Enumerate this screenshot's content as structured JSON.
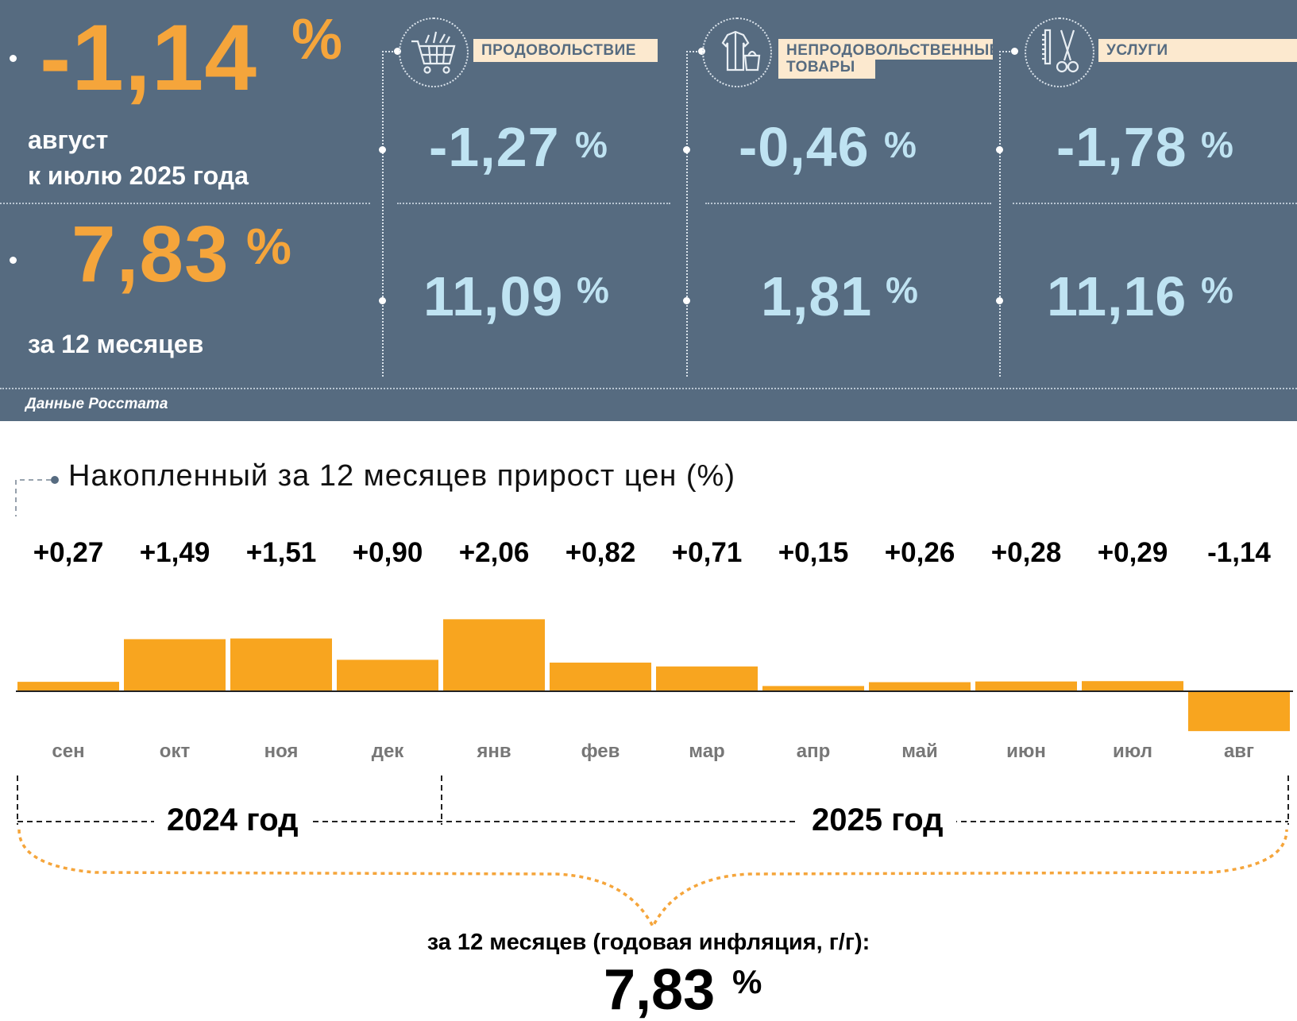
{
  "header": {
    "monthly_value": "-1,14",
    "monthly_pct": "%",
    "monthly_caption_1": "август",
    "monthly_caption_2": "к июлю 2025 года",
    "annual_value": "7,83",
    "annual_pct": "%",
    "annual_caption": "за 12 месяцев",
    "source": "Данные Росстата"
  },
  "categories": [
    {
      "icon": "shopping-cart-icon",
      "label_1": "ПРОДОВОЛЬСТВИЕ",
      "label_2": "",
      "monthly": "-1,27",
      "annual": "11,09",
      "pct": "%"
    },
    {
      "icon": "clothes-bag-icon",
      "label_1": "НЕПРОДОВОЛЬСТВЕННЫЕ",
      "label_2": "ТОВАРЫ",
      "monthly": "-0,46",
      "annual": "1,81",
      "pct": "%"
    },
    {
      "icon": "scissors-comb-icon",
      "label_1": "УСЛУГИ",
      "label_2": "",
      "monthly": "-1,78",
      "annual": "11,16",
      "pct": "%"
    }
  ],
  "colors": {
    "panel": "#566b80",
    "accent_orange": "#f5a53b",
    "value_blue": "#bfe3f2",
    "bar": "#f8a51f",
    "label_bg": "#fce9cf"
  },
  "chart_data": {
    "type": "bar",
    "title": "Накопленный за 12 месяцев прирост цен (%)",
    "categories": [
      "сен",
      "окт",
      "ноя",
      "дек",
      "янв",
      "фев",
      "мар",
      "апр",
      "май",
      "июн",
      "июл",
      "авг"
    ],
    "values": [
      0.27,
      1.49,
      1.51,
      0.9,
      2.06,
      0.82,
      0.71,
      0.15,
      0.26,
      0.28,
      0.29,
      -1.14
    ],
    "value_labels": [
      "+0,27",
      "+1,49",
      "+1,51",
      "+0,90",
      "+2,06",
      "+0,82",
      "+0,71",
      "+0,15",
      "+0,26",
      "+0,28",
      "+0,29",
      "-1,14"
    ],
    "groups": [
      {
        "label": "2024 год",
        "months": [
          "сен",
          "окт",
          "ноя",
          "дек"
        ]
      },
      {
        "label": "2025 год",
        "months": [
          "янв",
          "фев",
          "мар",
          "апр",
          "май",
          "июн",
          "июл",
          "авг"
        ]
      }
    ],
    "ylim": [
      -1.2,
      2.2
    ],
    "grid": false,
    "summary_caption": "за 12 месяцев (годовая инфляция, г/г):",
    "summary_value": "7,83",
    "summary_pct": "%"
  }
}
